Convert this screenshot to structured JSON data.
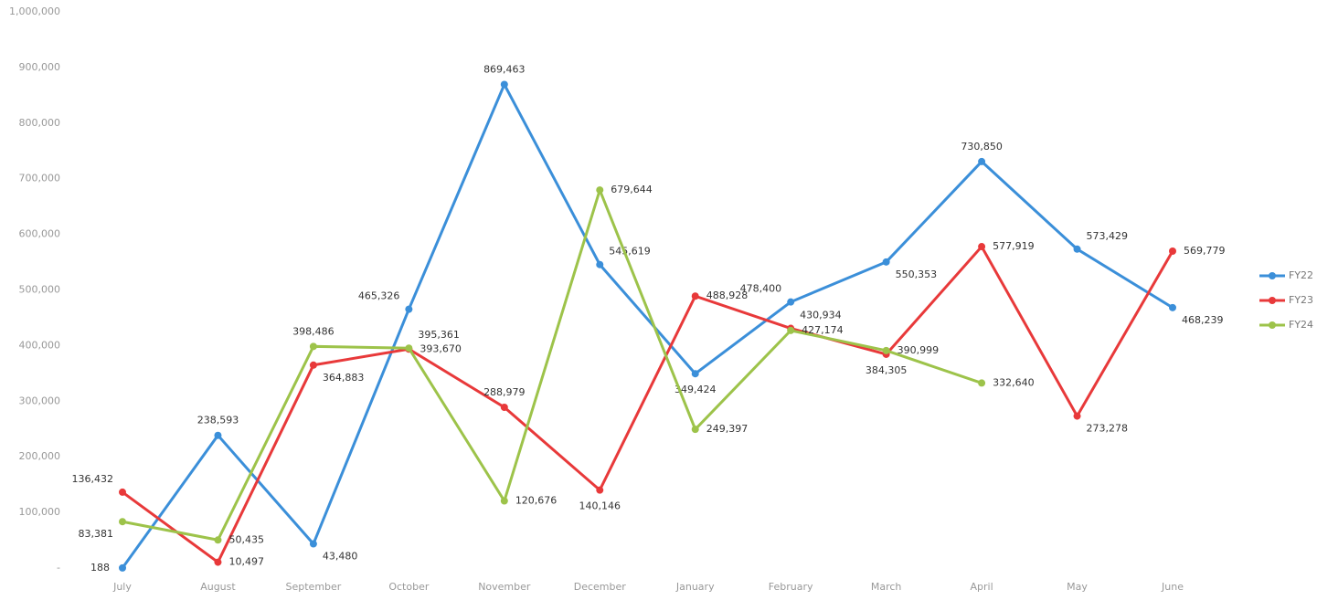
{
  "chart_data": {
    "type": "line",
    "categories": [
      "July",
      "August",
      "September",
      "October",
      "November",
      "December",
      "January",
      "February",
      "March",
      "April",
      "May",
      "June"
    ],
    "series": [
      {
        "name": "FY22",
        "color": "#3b8fd9",
        "values": [
          188,
          238593,
          43480,
          465326,
          869463,
          545619,
          349424,
          478400,
          550353,
          730850,
          573429,
          468239
        ],
        "value_labels": [
          "188",
          "238,593",
          "43,480",
          "465,326",
          "869,463",
          "545,619",
          "349,424",
          "478,400",
          "550,353",
          "730,850",
          "573,429",
          "468,239"
        ]
      },
      {
        "name": "FY23",
        "color": "#e8393a",
        "values": [
          136432,
          10497,
          364883,
          393670,
          288979,
          140146,
          488928,
          430934,
          384305,
          577919,
          273278,
          569779
        ],
        "value_labels": [
          "136,432",
          "10,497",
          "364,883",
          "393,670",
          "288,979",
          "140,146",
          "488,928",
          "430,934",
          "384,305",
          "577,919",
          "273,278",
          "569,779"
        ]
      },
      {
        "name": "FY24",
        "color": "#9dc34a",
        "values": [
          83381,
          50435,
          398486,
          395361,
          120676,
          679644,
          249397,
          427174,
          390999,
          332640,
          null,
          null
        ],
        "value_labels": [
          "83,381",
          "50,435",
          "398,486",
          "395,361",
          "120,676",
          "679,644",
          "249,397",
          "427,174",
          "390,999",
          "332,640",
          null,
          null
        ]
      }
    ],
    "ylim": [
      0,
      1000000
    ],
    "yticks": [
      {
        "value": 0,
        "label": "-"
      },
      {
        "value": 100000,
        "label": "100,000"
      },
      {
        "value": 200000,
        "label": "200,000"
      },
      {
        "value": 300000,
        "label": "300,000"
      },
      {
        "value": 400000,
        "label": "400,000"
      },
      {
        "value": 500000,
        "label": "500,000"
      },
      {
        "value": 600000,
        "label": "600,000"
      },
      {
        "value": 700000,
        "label": "700,000"
      },
      {
        "value": 800000,
        "label": "800,000"
      },
      {
        "value": 900000,
        "label": "900,000"
      },
      {
        "value": 1000000,
        "label": "1,000,000"
      }
    ],
    "grid": false,
    "legend": "right"
  }
}
